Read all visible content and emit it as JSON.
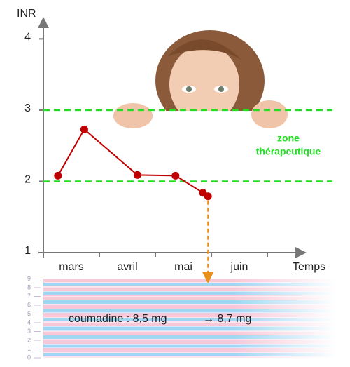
{
  "chart_data": {
    "type": "line",
    "y_label": "INR",
    "x_label": "Temps",
    "categories": [
      "mars",
      "avril",
      "mai",
      "juin"
    ],
    "x": [
      0.26,
      0.73,
      1.68,
      2.36,
      2.85,
      2.94
    ],
    "values": [
      2.08,
      2.73,
      2.09,
      2.08,
      1.84,
      1.79
    ],
    "color": "#c00000",
    "xlim": [
      0,
      4.625
    ],
    "xticks": [
      1,
      2,
      3,
      4
    ],
    "ylim": [
      1,
      4.25
    ],
    "yticks": [
      1,
      2,
      3,
      4
    ],
    "zone": {
      "label_lines": [
        "zone",
        "thérapeutique"
      ],
      "range": [
        2,
        3
      ],
      "color": "#22dd22"
    },
    "dose": {
      "ticks": [
        0,
        1,
        2,
        3,
        4,
        5,
        6,
        7,
        8,
        9
      ],
      "before": "coumadine : 8,5 mg",
      "after": "→ 8,7 mg"
    }
  }
}
